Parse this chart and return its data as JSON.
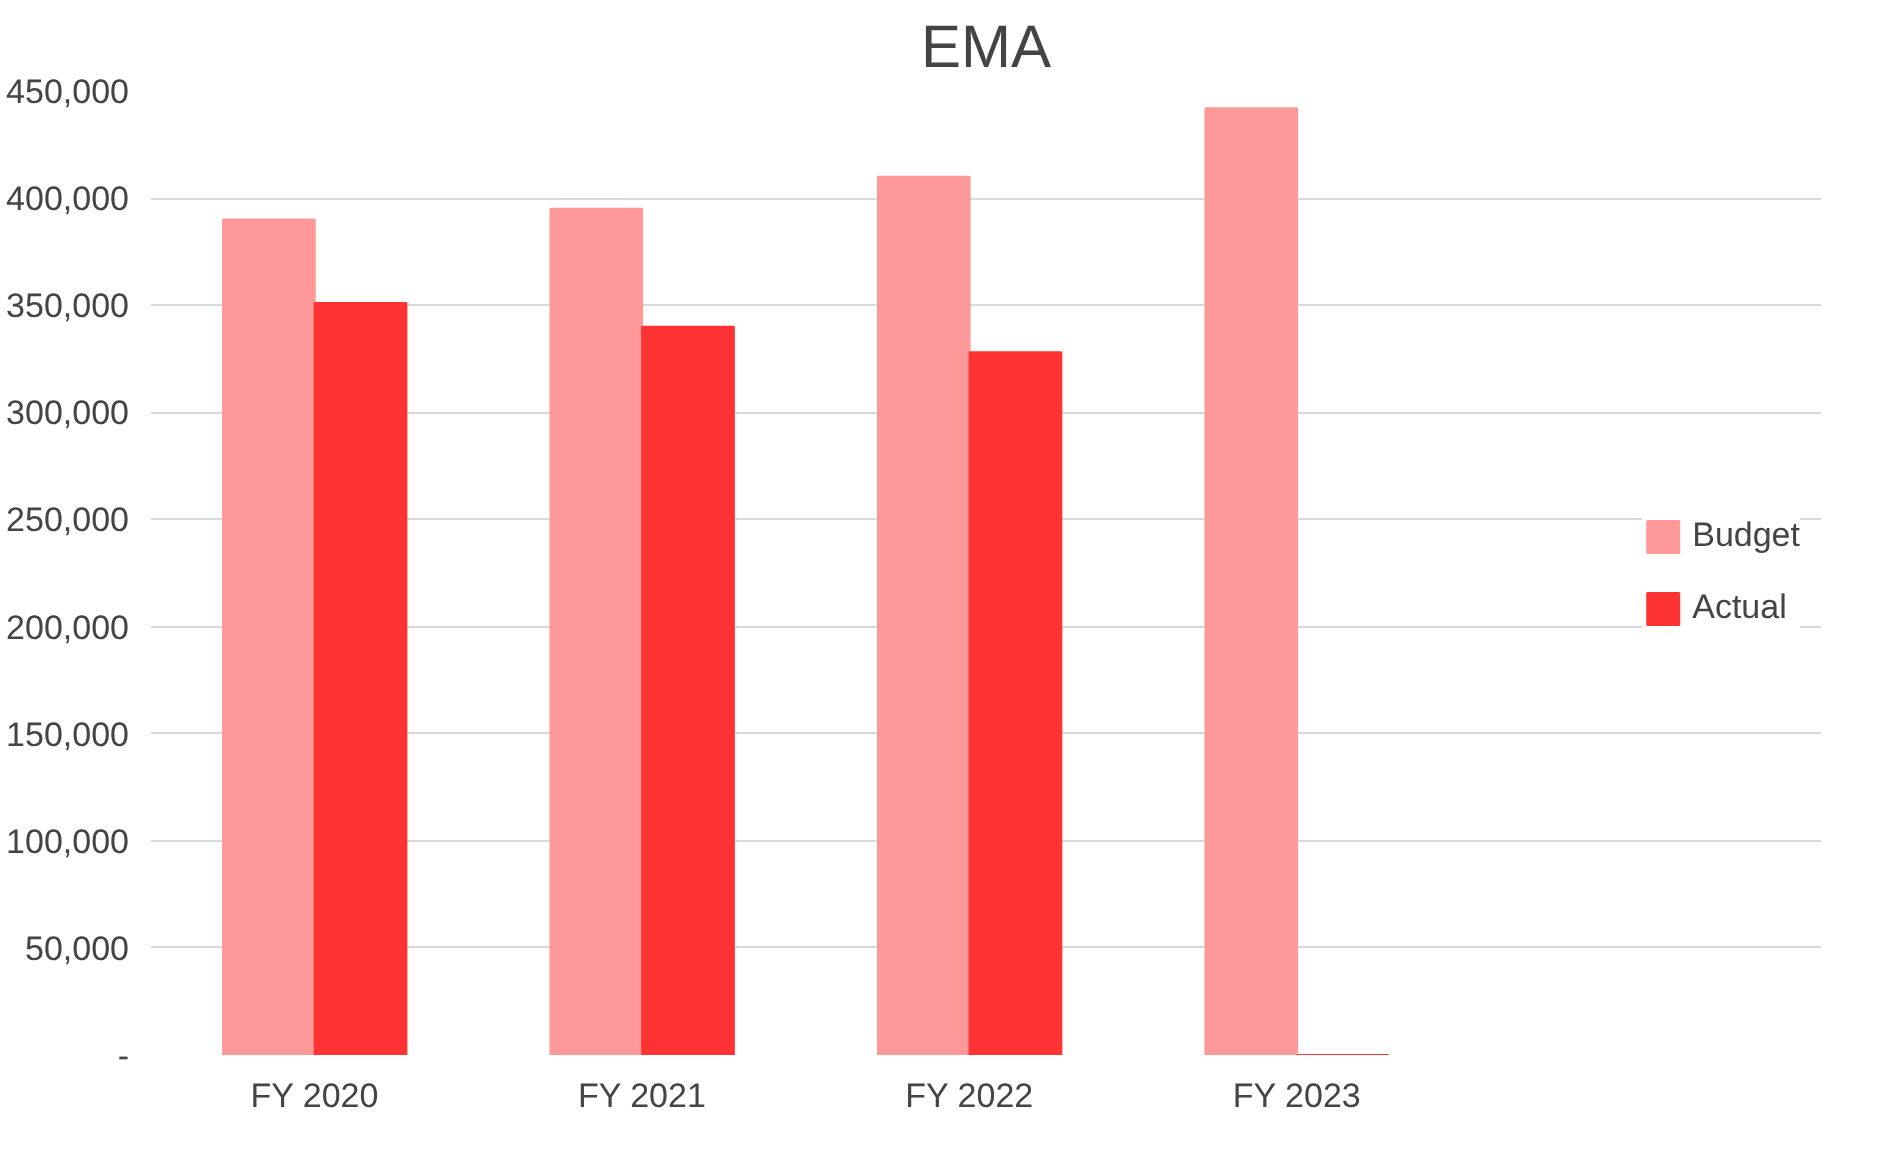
{
  "chart_data": {
    "type": "bar",
    "title": "EMA",
    "categories": [
      "FY 2020",
      "FY 2021",
      "FY 2022",
      "FY 2023"
    ],
    "series": [
      {
        "name": "Budget",
        "color": "#ff9999",
        "values": [
          390000,
          395000,
          410000,
          442000
        ]
      },
      {
        "name": "Actual",
        "color": "#ff3333",
        "values": [
          351000,
          340000,
          328000,
          0
        ]
      }
    ],
    "ylim": [
      0,
      450000
    ],
    "yticks": [
      {
        "value": 0,
        "label": "-"
      },
      {
        "value": 50000,
        "label": "50,000"
      },
      {
        "value": 100000,
        "label": "100,000"
      },
      {
        "value": 150000,
        "label": "150,000"
      },
      {
        "value": 200000,
        "label": "200,000"
      },
      {
        "value": 250000,
        "label": "250,000"
      },
      {
        "value": 300000,
        "label": "300,000"
      },
      {
        "value": 350000,
        "label": "350,000"
      },
      {
        "value": 400000,
        "label": "400,000"
      },
      {
        "value": 450000,
        "label": "450,000"
      }
    ],
    "grid": "y",
    "legend": "right"
  }
}
